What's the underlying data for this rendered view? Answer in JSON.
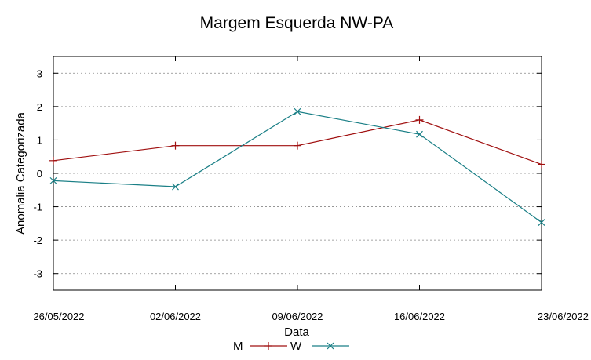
{
  "chart_data": {
    "type": "line",
    "title": "Margem Esquerda NW-PA",
    "xlabel": "Data",
    "ylabel": "Anomalia Categorizada",
    "categories": [
      "26/05/2022",
      "02/06/2022",
      "09/06/2022",
      "16/06/2022",
      "23/06/2022"
    ],
    "ylim": [
      -3.5,
      3.5
    ],
    "yticks": [
      -3,
      -2,
      -1,
      0,
      1,
      2,
      3
    ],
    "grid": true,
    "legend_position": "bottom",
    "series": [
      {
        "name": "M",
        "color": "#a01010",
        "marker": "plus",
        "values": [
          0.38,
          0.83,
          0.83,
          1.6,
          0.27
        ]
      },
      {
        "name": "W",
        "color": "#1a7f86",
        "marker": "cross",
        "values": [
          -0.22,
          -0.4,
          1.85,
          1.17,
          -1.47
        ]
      }
    ]
  }
}
